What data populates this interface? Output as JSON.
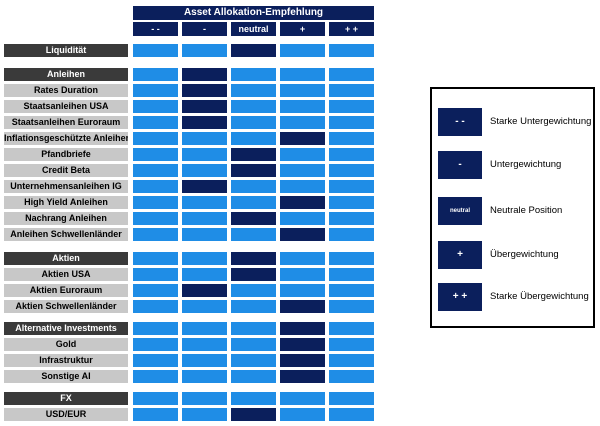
{
  "chart_data": {
    "type": "table",
    "title": "Asset Allokation-Empfehlung",
    "columns": [
      "- -",
      "-",
      "neutral",
      "+",
      "+ +"
    ],
    "rows": [
      {
        "label": "Liquidität",
        "kind": "header",
        "position": "neutral"
      },
      {
        "label": "Anleihen",
        "kind": "header",
        "position": "-"
      },
      {
        "label": "Rates Duration",
        "kind": "item",
        "position": "-"
      },
      {
        "label": "Staatsanleihen USA",
        "kind": "item",
        "position": "-"
      },
      {
        "label": "Staatsanleihen Euroraum",
        "kind": "item",
        "position": "-"
      },
      {
        "label": "Inflationsgeschützte Anleihen",
        "kind": "item",
        "position": "+"
      },
      {
        "label": "Pfandbriefe",
        "kind": "item",
        "position": "neutral"
      },
      {
        "label": "Credit Beta",
        "kind": "item",
        "position": "neutral"
      },
      {
        "label": "Unternehmensanleihen IG",
        "kind": "item",
        "position": "-"
      },
      {
        "label": "High Yield Anleihen",
        "kind": "item",
        "position": "+"
      },
      {
        "label": "Nachrang Anleihen",
        "kind": "item",
        "position": "neutral"
      },
      {
        "label": "Anleihen Schwellenländer",
        "kind": "item",
        "position": "+"
      },
      {
        "label": "Aktien",
        "kind": "header",
        "position": "neutral"
      },
      {
        "label": "Aktien USA",
        "kind": "item",
        "position": "neutral"
      },
      {
        "label": "Aktien Euroraum",
        "kind": "item",
        "position": "-"
      },
      {
        "label": "Aktien Schwellenländer",
        "kind": "item",
        "position": "+"
      },
      {
        "label": "Alternative Investments",
        "kind": "header",
        "position": "+"
      },
      {
        "label": "Gold",
        "kind": "item",
        "position": "+"
      },
      {
        "label": "Infrastruktur",
        "kind": "item",
        "position": "+"
      },
      {
        "label": "Sonstige AI",
        "kind": "item",
        "position": "+"
      },
      {
        "label": "FX",
        "kind": "header",
        "position": null
      },
      {
        "label": "USD/EUR",
        "kind": "item",
        "position": "neutral"
      }
    ],
    "legend": [
      {
        "symbol": "- -",
        "text": "Starke Untergewichtung"
      },
      {
        "symbol": "-",
        "text": "Untergewichtung"
      },
      {
        "symbol": "neutral",
        "text": "Neutrale Position"
      },
      {
        "symbol": "+",
        "text": "Übergewichtung"
      },
      {
        "symbol": "+ +",
        "text": "Starke Übergewichtung"
      }
    ],
    "legend_position": "right",
    "colors": {
      "active": "#0b1f5c",
      "inactive": "#1f8de6",
      "header_label": "#3a3a3a",
      "item_label": "#c8c8c8"
    }
  }
}
